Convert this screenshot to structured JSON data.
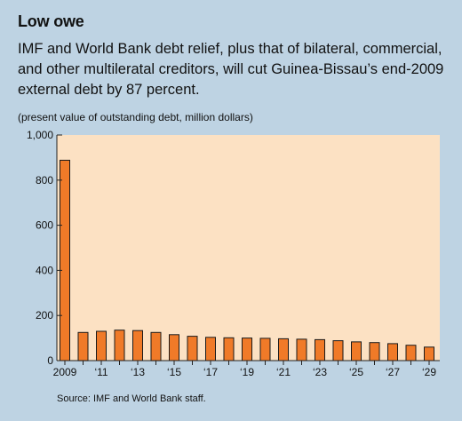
{
  "header": {
    "title": "Low owe",
    "subtitle": "IMF and World Bank debt relief, plus that of bilateral, commercial, and other multileratal creditors, will cut Guinea-Bissau’s end-2009 external debt by 87 percent.",
    "note": "(present value of outstanding debt, million dollars)"
  },
  "footer": {
    "source": "Source: IMF and World Bank staff."
  },
  "colors": {
    "background": "#bed3e3",
    "plot": "#fce1c3",
    "bar": "#f07a28",
    "bar_outline": "#1a1a1a"
  },
  "chart_data": {
    "type": "bar",
    "categories": [
      "2009",
      "2010",
      "2011",
      "2012",
      "2013",
      "2014",
      "2015",
      "2016",
      "2017",
      "2018",
      "2019",
      "2020",
      "2021",
      "2022",
      "2023",
      "2024",
      "2025",
      "2026",
      "2027",
      "2028",
      "2029"
    ],
    "values": [
      888,
      125,
      130,
      135,
      133,
      125,
      115,
      108,
      103,
      101,
      100,
      99,
      97,
      95,
      93,
      88,
      83,
      80,
      75,
      68,
      60
    ],
    "x_tick_labels": [
      "2009",
      "‘11",
      "‘13",
      "‘15",
      "‘17",
      "‘19",
      "‘21",
      "‘23",
      "‘25",
      "‘27",
      "‘29"
    ],
    "x_tick_indices": [
      0,
      2,
      4,
      6,
      8,
      10,
      12,
      14,
      16,
      18,
      20
    ],
    "y_ticks": [
      0,
      200,
      400,
      600,
      800,
      1000
    ],
    "y_tick_labels": [
      "0",
      "200",
      "400",
      "600",
      "800",
      "1,000"
    ],
    "ylim": [
      0,
      1000
    ],
    "grid": false,
    "legend": "none"
  }
}
